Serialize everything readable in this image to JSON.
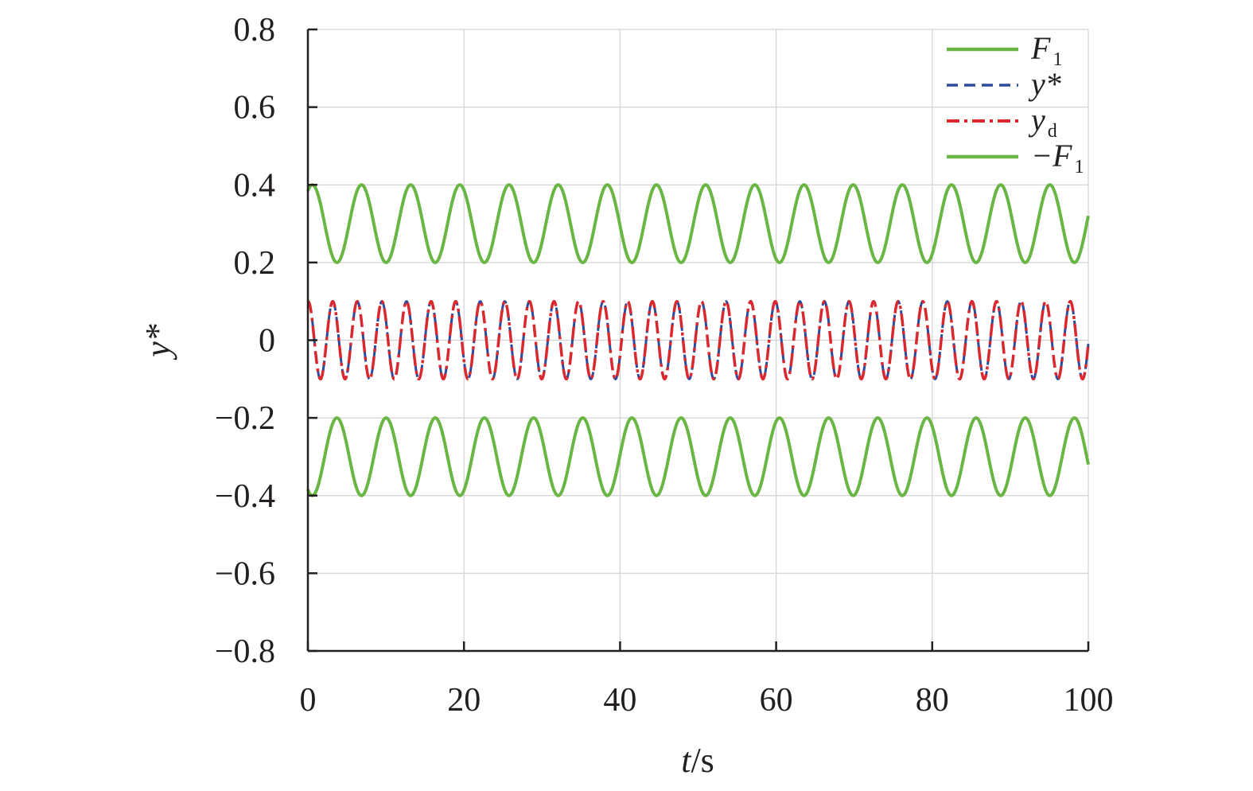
{
  "chart_data": {
    "type": "line",
    "xlabel": "t/s",
    "ylabel": "y*",
    "xlim": [
      0,
      100
    ],
    "ylim": [
      -0.8,
      0.8
    ],
    "xticks": [
      0,
      20,
      40,
      60,
      80,
      100
    ],
    "yticks": [
      -0.8,
      -0.6,
      -0.4,
      -0.2,
      0,
      0.2,
      0.4,
      0.6,
      0.8
    ],
    "xtick_labels": [
      "0",
      "20",
      "40",
      "60",
      "80",
      "100"
    ],
    "ytick_labels": [
      "−0.8",
      "−0.6",
      "−0.4",
      "−0.2",
      "0",
      "0.2",
      "0.4",
      "0.6",
      "0.8"
    ],
    "grid": true,
    "legend_position": "top-right",
    "series": [
      {
        "name": "F1",
        "legend_main": "F",
        "legend_sub": "1",
        "style": "solid",
        "color": "#6ab645",
        "function": "0.3 + 0.1*sin(2*pi*t/6.3 + 1.0)"
      },
      {
        "name": "y*",
        "legend_main": "y*",
        "legend_sub": "",
        "style": "dashed",
        "color": "#2e4a9c",
        "function": "0.1*sin(2*pi*t/3.15 + 1.5)"
      },
      {
        "name": "yd",
        "legend_main": "y",
        "legend_sub": "d",
        "style": "dashdot",
        "color": "#d9282e",
        "function": "0.1*sin(2*pi*t/3.15 + 1.5)"
      },
      {
        "name": "−F1",
        "legend_main": "−F",
        "legend_sub": "1",
        "style": "solid",
        "color": "#6ab645",
        "function": "-(0.3 + 0.1*sin(2*pi*t/6.3 + 1.0))"
      }
    ]
  }
}
